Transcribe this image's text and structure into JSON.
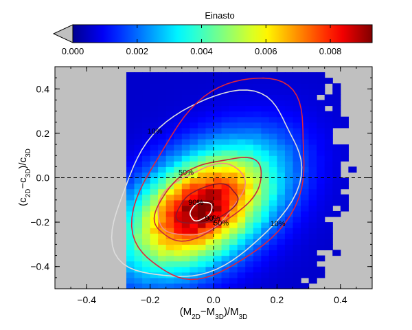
{
  "chart_data": {
    "type": "heatmap",
    "title": "Einasto",
    "xlabel": {
      "main": "(M",
      "s1": "2D",
      "mid": "−M",
      "s2": "3D",
      "close": ")/M",
      "s3": "3D"
    },
    "ylabel": {
      "main": "(c",
      "s1": "2D",
      "mid": "−c",
      "s2": "3D",
      "close": ")/c",
      "s3": "3D"
    },
    "xlim": [
      -0.5,
      0.5
    ],
    "ylim": [
      -0.5,
      0.5
    ],
    "xticks": [
      "−0.4",
      "−0.2",
      "0.0",
      "0.2",
      "0.4"
    ],
    "xtick_values": [
      -0.4,
      -0.2,
      0.0,
      0.2,
      0.4
    ],
    "yticks": [
      "−0.4",
      "−0.2",
      "0.0",
      "0.2",
      "0.4"
    ],
    "ytick_values": [
      -0.4,
      -0.2,
      0.0,
      0.2,
      0.4
    ],
    "colorbar": {
      "range": [
        0.0,
        0.0093
      ],
      "ticks": [
        "0.000",
        "0.002",
        "0.004",
        "0.006",
        "0.008"
      ],
      "tick_values": [
        0.0,
        0.002,
        0.004,
        0.006,
        0.008
      ],
      "under_color": "#c0c0c0"
    },
    "reference_lines": {
      "x": 0.0,
      "y": 0.0,
      "style": "dashed"
    },
    "bin_size": 0.025,
    "density_model": {
      "center": [
        -0.04,
        -0.14
      ],
      "peak": 0.0093,
      "sigma_major": 0.21,
      "sigma_minor": 0.125,
      "angle_deg": 55
    },
    "background_color": "#0000a0",
    "contours": [
      {
        "label": "10%",
        "color": "#dddddd",
        "level": 0.1,
        "center": [
          -0.02,
          -0.04
        ],
        "a": 0.44,
        "b": 0.26,
        "angle_deg": 68
      },
      {
        "label": "10%",
        "color": "#e0233c",
        "level": 0.1,
        "center": [
          0.03,
          -0.01
        ],
        "a": 0.47,
        "b": 0.24,
        "angle_deg": 72
      },
      {
        "label": "50%",
        "color": "#f08a8a",
        "level": 0.5,
        "center": [
          -0.04,
          -0.1
        ],
        "a": 0.18,
        "b": 0.11,
        "angle_deg": 55
      },
      {
        "label": "50%",
        "color": "#c8283c",
        "level": 0.5,
        "center": [
          -0.02,
          -0.09
        ],
        "a": 0.22,
        "b": 0.12,
        "angle_deg": 50
      },
      {
        "label": "90%",
        "color": "#ffffff",
        "level": 0.9,
        "center": [
          -0.04,
          -0.15
        ],
        "a": 0.045,
        "b": 0.03,
        "angle_deg": 60
      },
      {
        "label": "90%",
        "color": "#8b1a2c",
        "level": 0.9,
        "center": [
          -0.02,
          -0.12
        ],
        "a": 0.11,
        "b": 0.07,
        "angle_deg": 40
      }
    ],
    "colors": {
      "jet_stops": [
        "#00008f",
        "#0000ff",
        "#00ffff",
        "#ffff00",
        "#ff0000",
        "#800000"
      ]
    }
  }
}
